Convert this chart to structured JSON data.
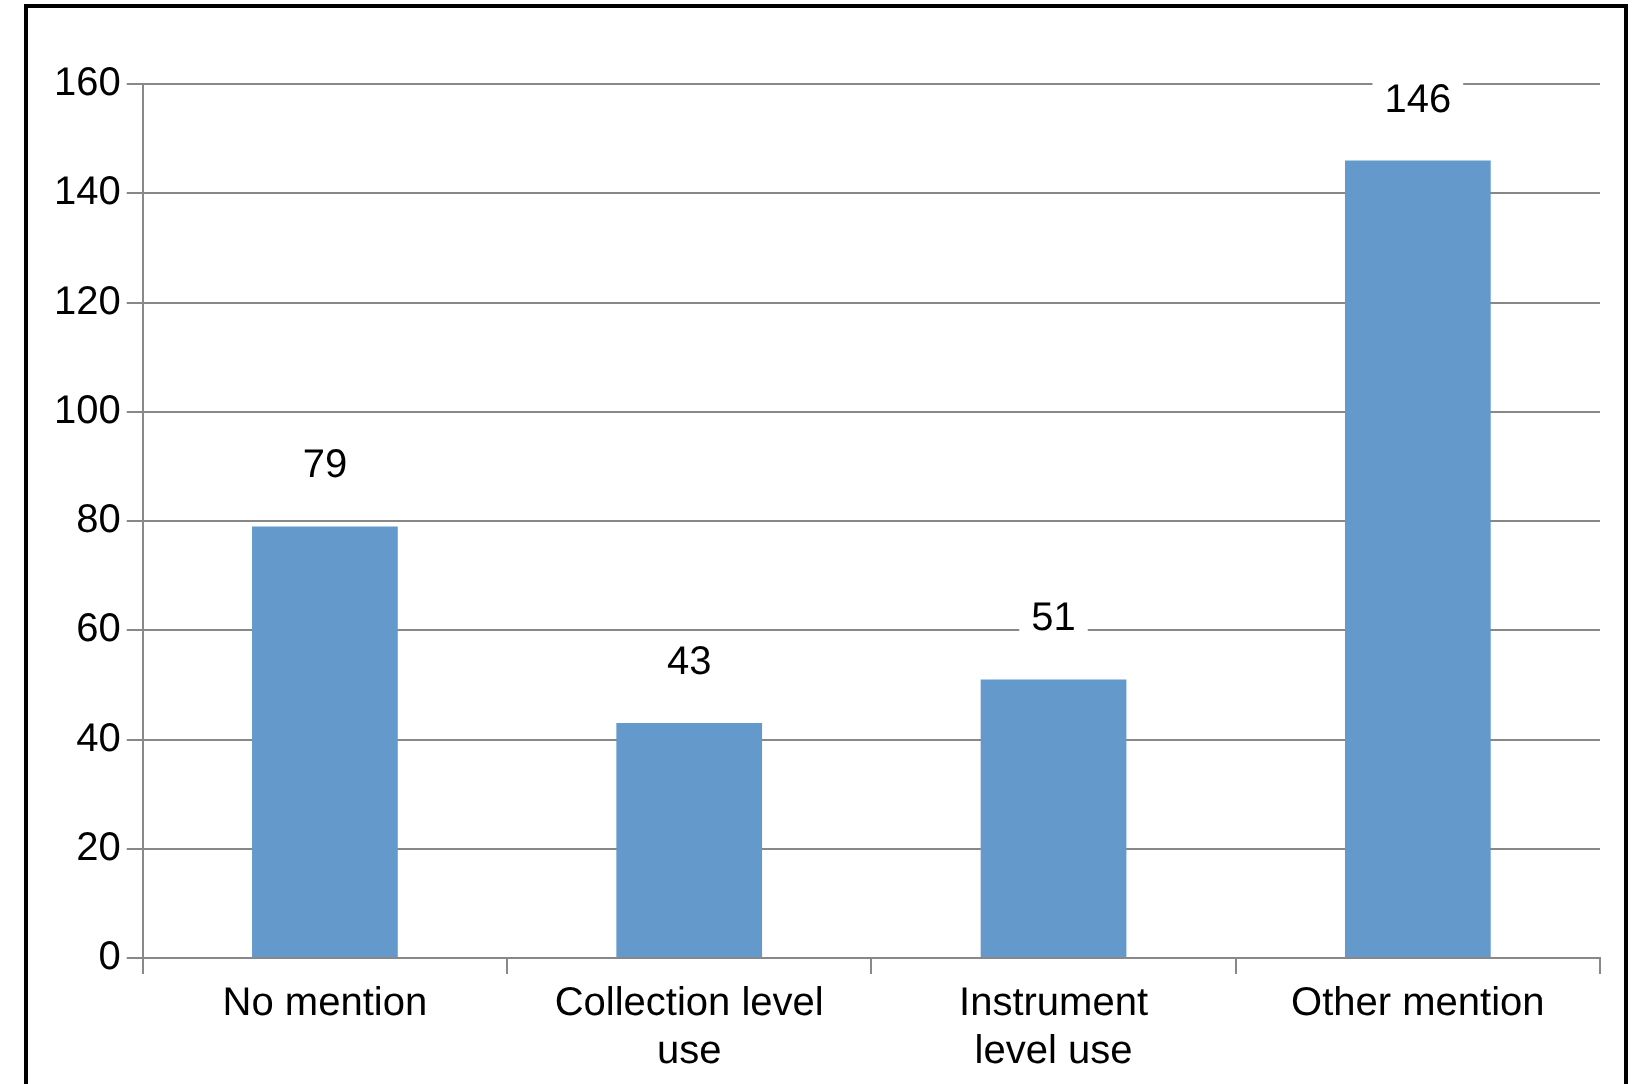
{
  "chart_data": {
    "type": "bar",
    "categories": [
      "No mention",
      "Collection level use",
      "Instrument level use",
      "Other mention"
    ],
    "values": [
      79,
      43,
      51,
      146
    ],
    "color": "#6499cb",
    "ylim": [
      0,
      160
    ],
    "yticks": [
      0,
      20,
      40,
      60,
      80,
      100,
      120,
      140,
      160
    ],
    "grid": "y",
    "data_labels": true
  }
}
